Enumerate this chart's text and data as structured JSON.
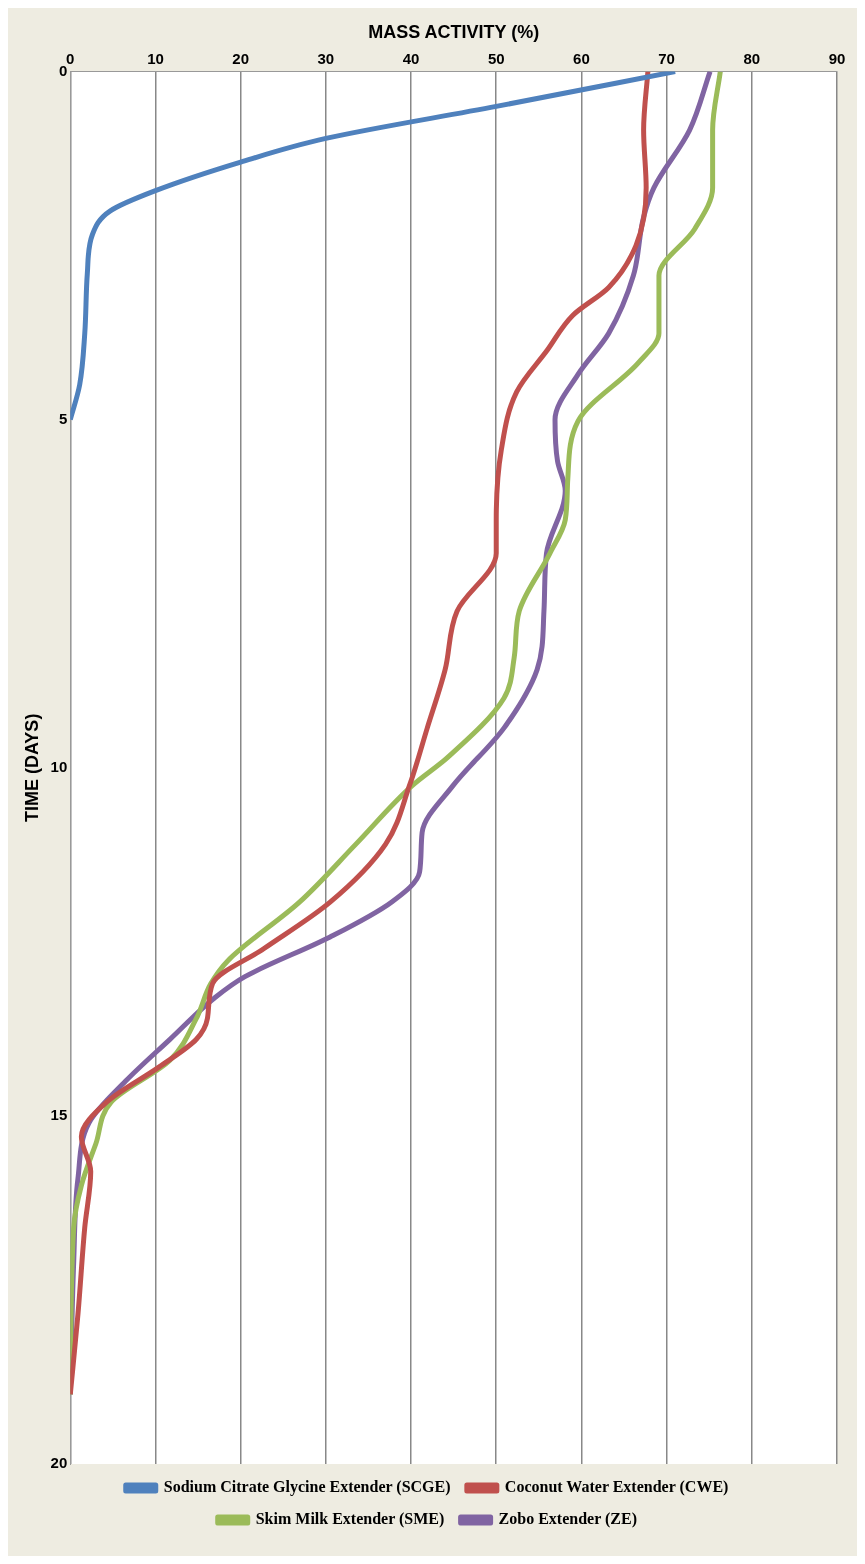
{
  "chart_data": {
    "type": "line",
    "xlabel": "MASS ACTIVITY (%)",
    "ylabel": "TIME (DAYS)",
    "xlim": [
      0,
      90
    ],
    "xticks": [
      0,
      10,
      20,
      30,
      40,
      50,
      60,
      70,
      80,
      90
    ],
    "ylim": [
      20,
      0
    ],
    "yticks": [
      0,
      5,
      10,
      15,
      20
    ],
    "grid": "x",
    "legend": "bottom",
    "marker": "none",
    "series": [
      {
        "name": "Sodium Citrate Glycine Extender (SCGE)",
        "color": "#4f81bd",
        "values": [
          0,
          0.5,
          0.96,
          1.3,
          1.71,
          2.0,
          2.34,
          2.9,
          3.76,
          4.5,
          5.0
        ],
        "x": [
          71,
          50,
          30,
          20,
          10,
          4.7,
          2.6,
          2.0,
          1.7,
          1.1,
          0
        ]
      },
      {
        "name": "Coconut Water Extender (CWE)",
        "color": "#c0504d",
        "values": [
          0,
          0.84,
          1.67,
          2.5,
          3.1,
          3.5,
          4.0,
          4.6,
          5.43,
          6.44,
          6.92,
          7.75,
          8.59,
          9.43,
          10.26,
          11.1,
          11.93,
          12.6,
          13.1,
          13.6,
          13.9,
          14.3,
          14.8,
          15.3,
          15.8,
          16.6,
          17.85,
          19.0
        ],
        "x": [
          67.8,
          67.3,
          67.6,
          66.4,
          63.2,
          59,
          56,
          52.4,
          50.6,
          50,
          50,
          45.4,
          44,
          41.9,
          39.8,
          37,
          30.5,
          22.7,
          16.7,
          16.1,
          14.8,
          10.4,
          4.3,
          1.3,
          2.4,
          1.7,
          0.9,
          0
        ]
      },
      {
        "name": "Skim Milk Extender (SME)",
        "color": "#9bbb59",
        "values": [
          0,
          0.84,
          1.67,
          2.26,
          2.93,
          3.76,
          4.18,
          5.02,
          5.85,
          6.44,
          6.92,
          7.75,
          8.42,
          9.0,
          9.85,
          10.26,
          11.1,
          11.93,
          12.77,
          13.1,
          13.6,
          14.2,
          14.8,
          15.4,
          16.0,
          16.6,
          19.0
        ],
        "x": [
          76.3,
          75.4,
          75.4,
          73.3,
          69.1,
          69.1,
          66.7,
          59.6,
          58.4,
          58.1,
          56.3,
          52.7,
          52.1,
          50.9,
          44.3,
          40.1,
          33.5,
          26.9,
          18.5,
          16.5,
          14.8,
          11.7,
          4.8,
          3.0,
          1.3,
          0.4,
          0
        ]
      },
      {
        "name": "Zobo Extender (ZE)",
        "color": "#8064a2",
        "values": [
          0,
          0.84,
          1.67,
          2.09,
          2.93,
          3.76,
          4.35,
          5.0,
          5.6,
          6.02,
          6.92,
          7.75,
          8.59,
          9.43,
          10.26,
          10.93,
          11.5,
          11.93,
          12.43,
          13.0,
          13.3,
          13.9,
          14.5,
          15.1,
          15.9,
          17.1,
          19.0
        ],
        "x": [
          75.1,
          72.7,
          68.5,
          67.3,
          66.1,
          63.2,
          59.6,
          56.9,
          57.2,
          58.1,
          55.9,
          55.6,
          54.8,
          50.9,
          44.9,
          41.3,
          41,
          37.7,
          30.5,
          20.5,
          17,
          11.7,
          6.5,
          2.2,
          0.9,
          0.4,
          0
        ]
      }
    ]
  }
}
